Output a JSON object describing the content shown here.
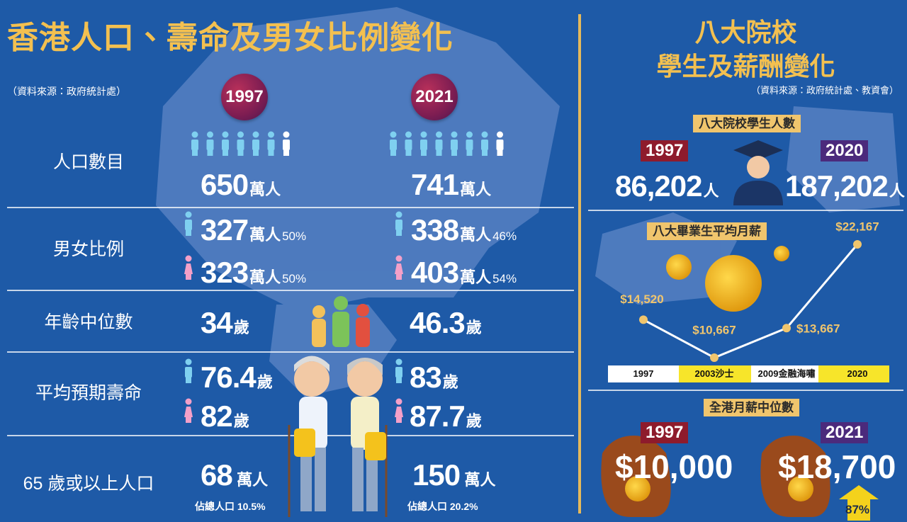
{
  "left": {
    "title": "香港人口、壽命及男女比例變化",
    "source": "（資料來源：政府統計處）",
    "years": [
      "1997",
      "2021"
    ],
    "population": {
      "label": "人口數目",
      "cells": [
        {
          "number": "650",
          "unit": "萬人"
        },
        {
          "number": "741",
          "unit": "萬人"
        }
      ]
    },
    "gender": {
      "label": "男女比例",
      "cells": [
        {
          "male": {
            "number": "327",
            "unit": "萬人",
            "share": "50%"
          },
          "female": {
            "number": "323",
            "unit": "萬人",
            "share": "50%"
          }
        },
        {
          "male": {
            "number": "338",
            "unit": "萬人",
            "share": "46%"
          },
          "female": {
            "number": "403",
            "unit": "萬人",
            "share": "54%"
          }
        }
      ]
    },
    "median_age": {
      "label": "年齡中位數",
      "cells": [
        {
          "number": "34",
          "unit": "歲"
        },
        {
          "number": "46.3",
          "unit": "歲"
        }
      ]
    },
    "life_expectancy": {
      "label": "平均預期壽命",
      "cells": [
        {
          "male": {
            "number": "76.4",
            "unit": "歲"
          },
          "female": {
            "number": "82",
            "unit": "歲"
          }
        },
        {
          "male": {
            "number": "83",
            "unit": "歲"
          },
          "female": {
            "number": "87.7",
            "unit": "歲"
          }
        }
      ]
    },
    "elderly": {
      "label": "65 歲或以上人口",
      "cells": [
        {
          "number": "68",
          "unit": "萬人",
          "note": "佔總人口 10.5%"
        },
        {
          "number": "150",
          "unit": "萬人",
          "note": "佔總人口 20.2%"
        }
      ]
    }
  },
  "right": {
    "title": [
      "八大院校",
      "學生及薪酬變化"
    ],
    "source": "（資料來源：政府統計處、教資會）",
    "students": {
      "label": "八大院校學生人數",
      "items": [
        {
          "year": "1997",
          "number": "86,202",
          "unit": "人"
        },
        {
          "year": "2020",
          "number": "187,202",
          "unit": "人"
        }
      ]
    },
    "median_wage": {
      "label": "全港月薪中位數",
      "items": [
        {
          "year": "1997",
          "value": "$10,000"
        },
        {
          "year": "2021",
          "value": "$18,700"
        }
      ],
      "growth": "87%"
    }
  },
  "chart_data": {
    "type": "line",
    "title": "八大畢業生平均月薪",
    "categories": [
      "1997",
      "2003沙士",
      "2009金融海嘯",
      "2020"
    ],
    "values": [
      14520,
      10667,
      13667,
      22167
    ],
    "value_labels": [
      "$14,520",
      "$10,667",
      "$13,667",
      "$22,167"
    ],
    "color": "#f0c56d"
  }
}
